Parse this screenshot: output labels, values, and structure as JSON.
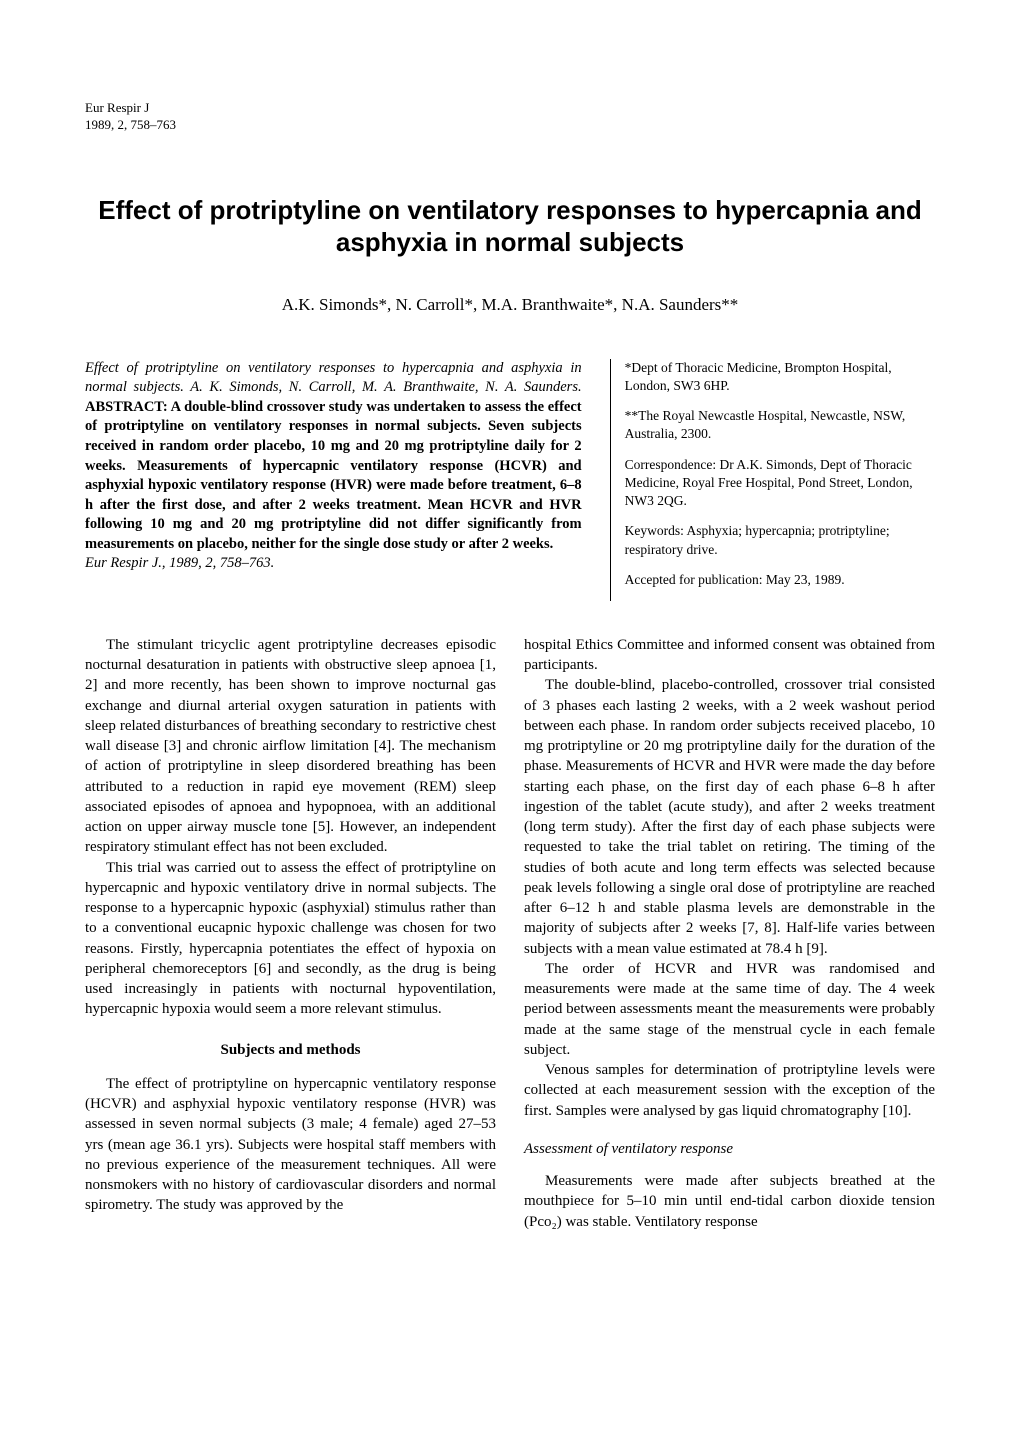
{
  "journal": {
    "name": "Eur Respir J",
    "ref": "1989, 2, 758–763"
  },
  "title": "Effect of protriptyline on ventilatory responses to hypercapnia and asphyxia in normal subjects",
  "authors": "A.K. Simonds*, N. Carroll*, M.A. Branthwaite*, N.A. Saunders**",
  "abstract": {
    "citation": "Effect of protriptyline on ventilatory responses to hypercapnia and asphyxia in normal subjects. A. K. Simonds, N. Carroll, M. A. Branthwaite, N. A. Saunders.",
    "body": "ABSTRACT: A double-blind crossover study was undertaken to assess the effect of protriptyline on ventilatory responses in normal subjects. Seven subjects received in random order placebo, 10 mg and 20 mg protriptyline daily for 2 weeks. Measurements of hypercapnic ventilatory response (HCVR) and asphyxial hypoxic ventilatory response (HVR) were made before treatment, 6–8 h after the first dose, and after 2 weeks treatment. Mean HCVR and HVR following 10 mg and 20 mg protriptyline did not differ significantly from measurements on placebo, neither for the single dose study or after 2 weeks.",
    "ref": "Eur Respir J., 1989, 2, 758–763."
  },
  "affiliations": {
    "a1": "*Dept of Thoracic Medicine, Brompton Hospital, London, SW3 6HP.",
    "a2": "**The Royal Newcastle Hospital, Newcastle, NSW, Australia, 2300.",
    "corr": "Correspondence: Dr A.K. Simonds, Dept of Thoracic Medicine, Royal Free Hospital, Pond Street, London, NW3 2QG.",
    "keywords": "Keywords: Asphyxia; hypercapnia; protriptyline; respiratory drive.",
    "accepted": "Accepted for publication: May 23, 1989."
  },
  "body": {
    "left": {
      "p1": "The stimulant tricyclic agent protriptyline decreases episodic nocturnal desaturation in patients with obstructive sleep apnoea [1, 2] and more recently, has been shown to improve nocturnal gas exchange and diurnal arterial oxygen saturation in patients with sleep related disturbances of breathing secondary to restrictive chest wall disease [3] and chronic airflow limitation [4]. The mechanism of action of protriptyline in sleep disordered breathing has been attributed to a reduction in rapid eye movement (REM) sleep associated episodes of apnoea and hypopnoea, with an additional action on upper airway muscle tone [5]. However, an independent respiratory stimulant effect has not been excluded.",
      "p2": "This trial was carried out to assess the effect of protriptyline on hypercapnic and hypoxic ventilatory drive in normal subjects. The response to a hypercapnic hypoxic (asphyxial) stimulus rather than to a conventional eucapnic hypoxic challenge was chosen for two reasons. Firstly, hypercapnia potentiates the effect of hypoxia on peripheral chemoreceptors [6] and secondly, as the drug is being used increasingly in patients with nocturnal hypoventilation, hypercapnic hypoxia would seem a more relevant stimulus.",
      "h1": "Subjects and methods",
      "p3": "The effect of protriptyline on hypercapnic ventilatory response (HCVR) and asphyxial hypoxic ventilatory response (HVR) was assessed in seven normal subjects (3 male; 4 female) aged 27–53 yrs (mean age 36.1 yrs). Subjects were hospital staff members with no previous experience of the measurement techniques. All were nonsmokers with no history of cardiovascular disorders and normal spirometry. The study was approved by the"
    },
    "right": {
      "p1": "hospital Ethics Committee and informed consent was obtained from participants.",
      "p2": "The double-blind, placebo-controlled, crossover trial consisted of 3 phases each lasting 2 weeks, with a 2 week washout period between each phase. In random order subjects received placebo, 10 mg protriptyline or 20 mg protriptyline daily for the duration of the phase. Measurements of HCVR and HVR were made the day before starting each phase, on the first day of each phase 6–8 h after ingestion of the tablet (acute study), and after 2 weeks treatment (long term study). After the first day of each phase subjects were requested to take the trial tablet on retiring. The timing of the studies of both acute and long term effects was selected because peak levels following a single oral dose of protriptyline are reached after 6–12 h and stable plasma levels are demonstrable in the majority of subjects after 2 weeks [7, 8]. Half-life varies between subjects with a mean value estimated at 78.4 h [9].",
      "p3": "The order of HCVR and HVR was randomised and measurements were made at the same time of day. The 4 week period between assessments meant the measurements were probably made at the same stage of the menstrual cycle in each female subject.",
      "p4": "Venous samples for determination of protriptyline levels were collected at each measurement session with the exception of the first. Samples were analysed by gas liquid chromatography [10].",
      "h1": "Assessment of ventilatory response",
      "p5": "Measurements were made after subjects breathed at the mouthpiece for 5–10 min until end-tidal carbon dioxide tension (Pco₂) was stable. Ventilatory response"
    }
  }
}
